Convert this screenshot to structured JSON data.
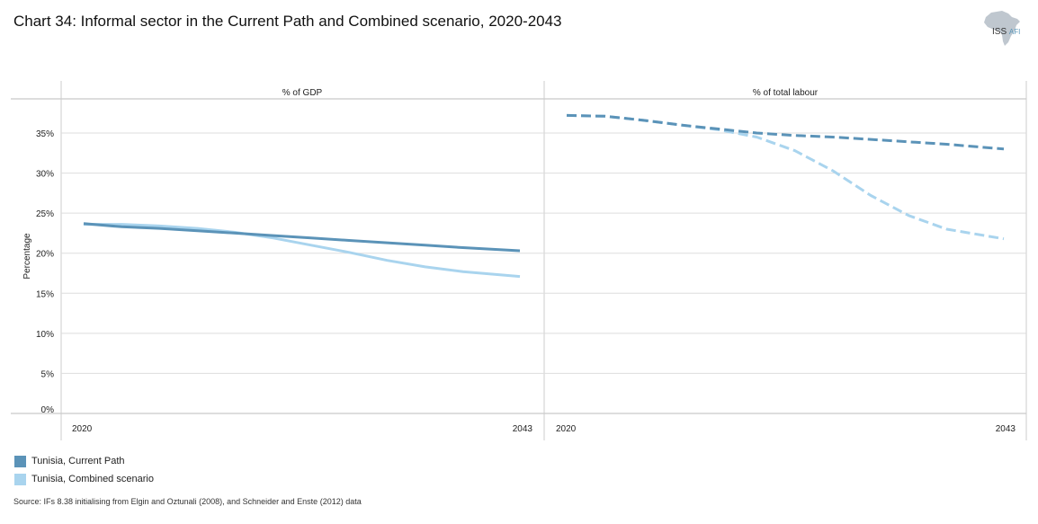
{
  "header": {
    "title": "Chart 34: Informal sector in the Current Path and Combined scenario, 2020-2043",
    "logo_main": "ISS",
    "logo_sub": "AFI"
  },
  "colors": {
    "current_path": "#5b93b8",
    "combined": "#a9d4ee",
    "grid": "#dddddd",
    "axis": "#bbbbbb"
  },
  "chart_data": [
    {
      "type": "line",
      "title": "% of GDP",
      "ylabel": "Percentage",
      "ylim": [
        0,
        38
      ],
      "yticks": [
        0,
        5,
        10,
        15,
        20,
        25,
        30,
        35
      ],
      "ytick_labels": [
        "0%",
        "5%",
        "10%",
        "15%",
        "20%",
        "25%",
        "30%",
        "35%"
      ],
      "xlim": [
        2020,
        2043
      ],
      "xtick_labels": [
        "2020",
        "2043"
      ],
      "series": [
        {
          "name": "Tunisia, Current Path",
          "style": "solid",
          "x": [
            2020,
            2022,
            2024,
            2026,
            2028,
            2030,
            2032,
            2034,
            2036,
            2038,
            2040,
            2043
          ],
          "values": [
            23.7,
            23.3,
            23.1,
            22.8,
            22.5,
            22.2,
            21.9,
            21.6,
            21.3,
            21.0,
            20.7,
            20.3
          ]
        },
        {
          "name": "Tunisia, Combined scenario",
          "style": "solid",
          "x": [
            2020,
            2022,
            2024,
            2026,
            2028,
            2030,
            2032,
            2034,
            2036,
            2038,
            2040,
            2043
          ],
          "values": [
            23.6,
            23.6,
            23.4,
            23.1,
            22.6,
            21.9,
            21.0,
            20.1,
            19.1,
            18.3,
            17.7,
            17.1
          ]
        }
      ]
    },
    {
      "type": "line",
      "title": "% of total labour",
      "ylim": [
        0,
        38
      ],
      "xlim": [
        2020,
        2043
      ],
      "xtick_labels": [
        "2020",
        "2043"
      ],
      "series": [
        {
          "name": "Tunisia, Current Path",
          "style": "dashed",
          "x": [
            2020,
            2022,
            2024,
            2026,
            2028,
            2030,
            2032,
            2034,
            2036,
            2038,
            2040,
            2043
          ],
          "values": [
            37.2,
            37.1,
            36.6,
            36.0,
            35.5,
            35.0,
            34.7,
            34.5,
            34.2,
            33.9,
            33.6,
            33.0
          ]
        },
        {
          "name": "Tunisia, Combined scenario",
          "style": "dashed",
          "x": [
            2020,
            2022,
            2024,
            2026,
            2028,
            2030,
            2032,
            2034,
            2036,
            2038,
            2040,
            2043
          ],
          "values": [
            37.2,
            37.1,
            36.6,
            36.0,
            35.4,
            34.5,
            32.8,
            30.3,
            27.2,
            24.7,
            23.0,
            21.8
          ]
        }
      ]
    }
  ],
  "legend": [
    {
      "label": "Tunisia, Current Path",
      "color_key": "current_path"
    },
    {
      "label": "Tunisia, Combined scenario",
      "color_key": "combined"
    }
  ],
  "source": "Source: IFs 8.38 initialising from Elgin and Oztunali (2008), and Schneider and Enste (2012) data"
}
